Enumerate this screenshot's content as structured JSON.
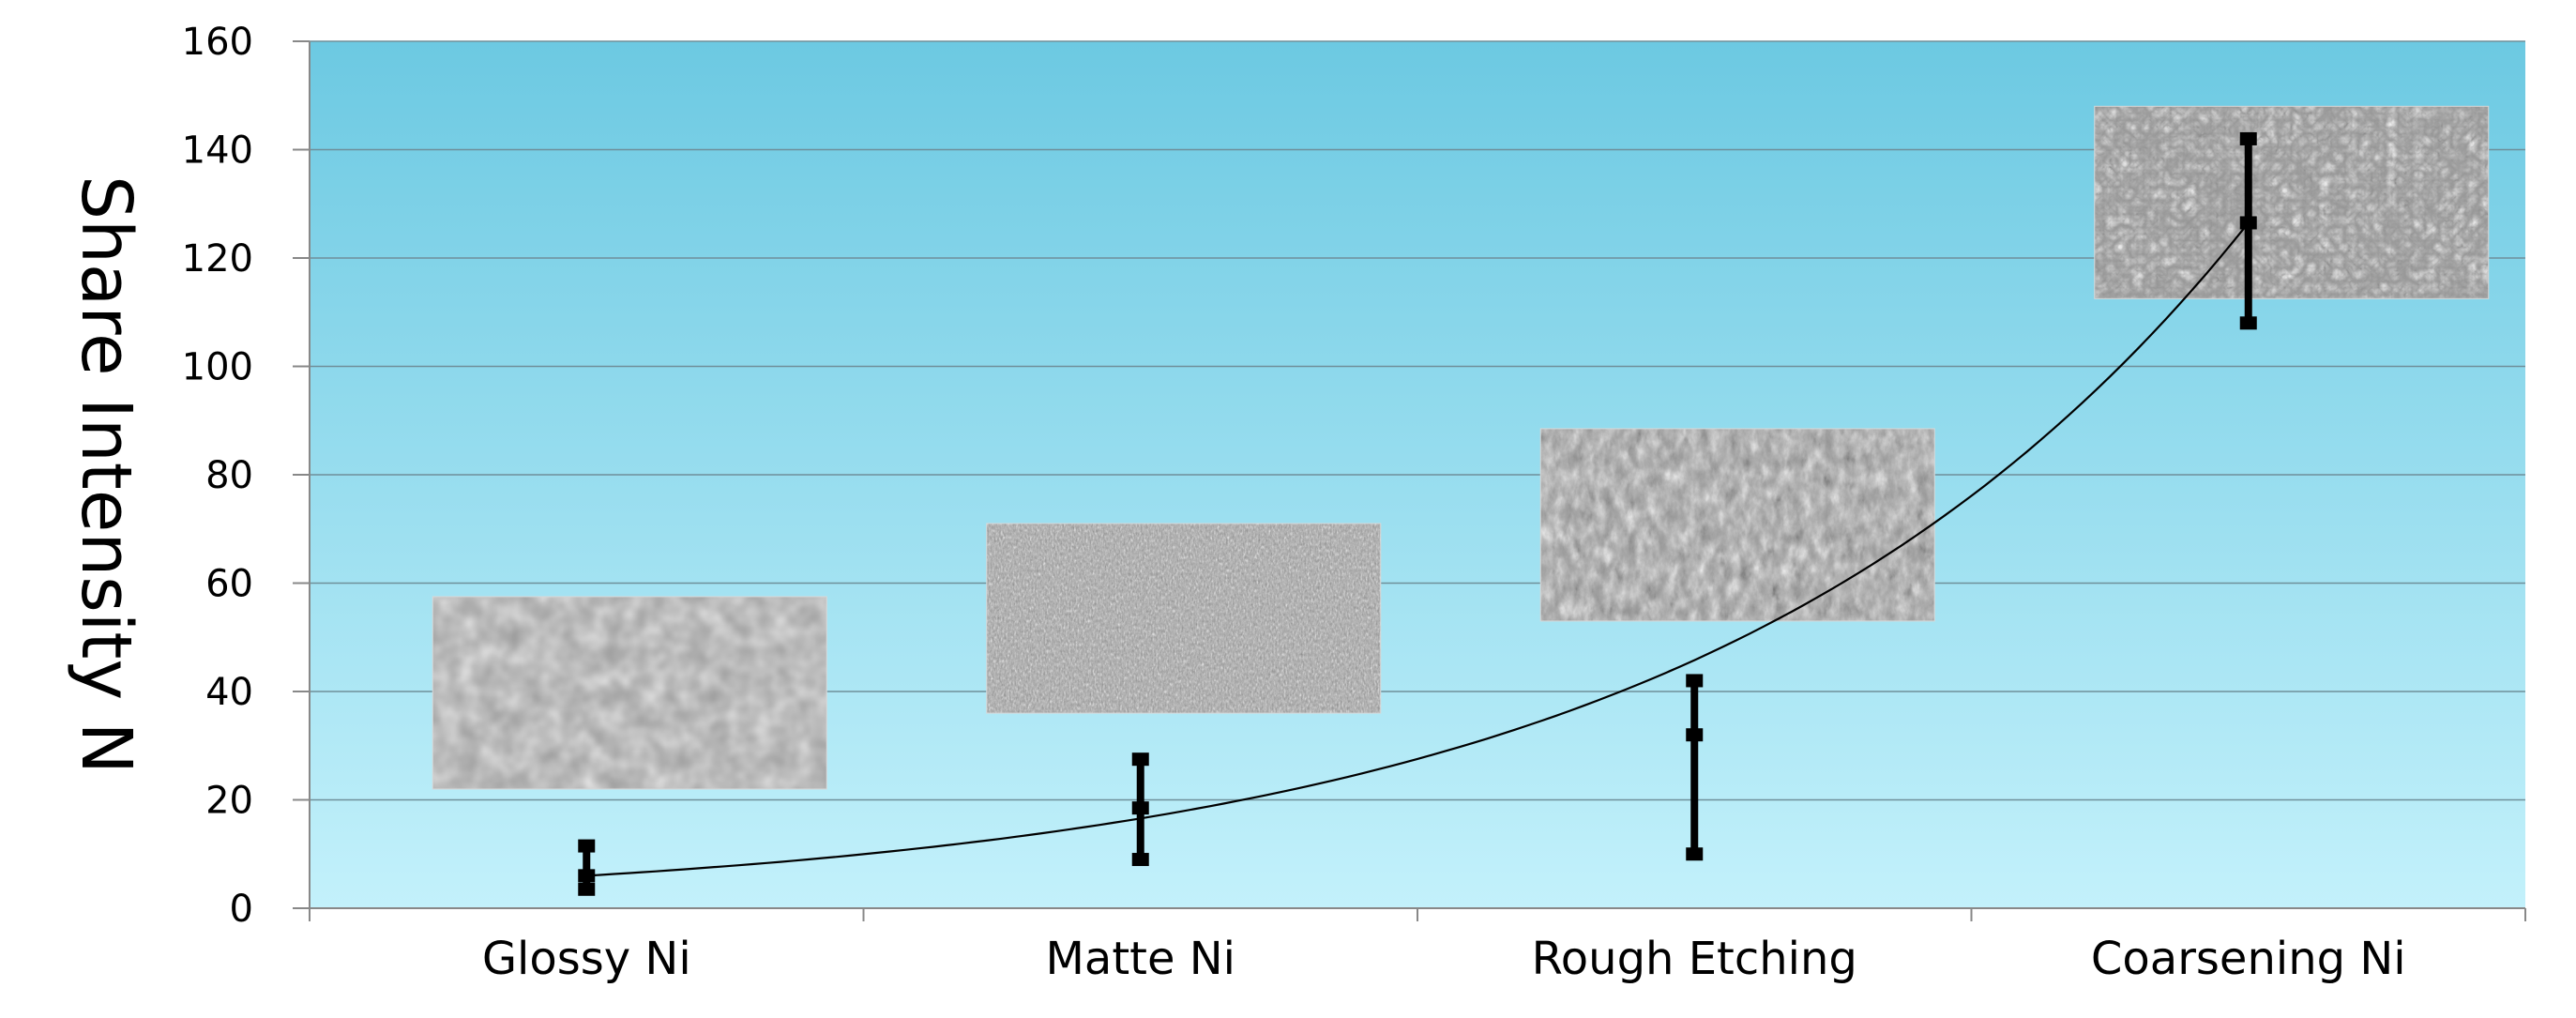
{
  "chart_data": {
    "type": "scatter",
    "title": "",
    "xlabel": "",
    "ylabel": "Share Intensity N",
    "ylim": [
      0,
      160
    ],
    "yticks": [
      0,
      20,
      40,
      60,
      80,
      100,
      120,
      140,
      160
    ],
    "yticklabels": [
      "0",
      "20",
      "40",
      "60",
      "80",
      "100",
      "120",
      "140",
      "160"
    ],
    "categories": [
      "Glossy Ni",
      "Matte Ni",
      "Rough Etching",
      "Coarsening Ni"
    ],
    "values": [
      6,
      18.5,
      32,
      126.5
    ],
    "error_low": [
      3.5,
      9,
      10,
      108
    ],
    "error_high": [
      11.5,
      27.5,
      42,
      142
    ],
    "trendline": "exponential",
    "grid": "horizontal",
    "background": "gradient light blue",
    "insets": [
      {
        "category": "Glossy Ni",
        "texture": "glossy",
        "y_top": 57.5,
        "y_bottom": 22
      },
      {
        "category": "Matte Ni",
        "texture": "matte",
        "y_top": 71,
        "y_bottom": 36
      },
      {
        "category": "Rough Etching",
        "texture": "rough",
        "y_top": 88.5,
        "y_bottom": 53
      },
      {
        "category": "Coarsening Ni",
        "texture": "coarse",
        "y_top": 148,
        "y_bottom": 112.5
      }
    ]
  },
  "colors": {
    "plot_top": "#6cc9e2",
    "plot_bottom": "#c3f1fb",
    "grid": "#6f8f9a",
    "markers": "#000000",
    "axis": "#888888"
  }
}
